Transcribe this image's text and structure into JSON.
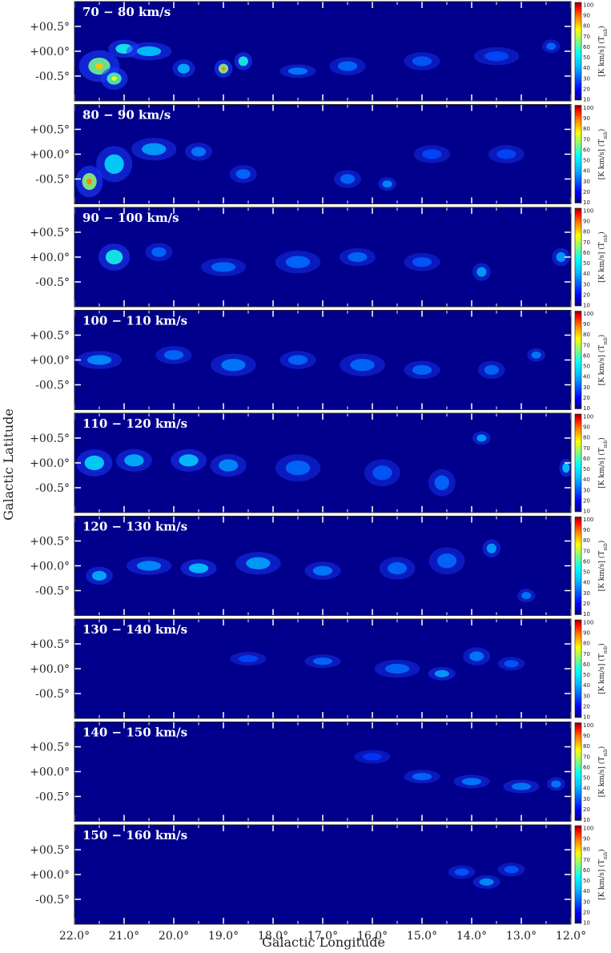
{
  "chart_data": {
    "type": "heatmap",
    "xlabel": "Galactic Longitude",
    "ylabel": "Galactic Latitude",
    "x_ticks": [
      "22.0°",
      "21.0°",
      "20.0°",
      "19.0°",
      "18.0°",
      "17.0°",
      "16.0°",
      "15.0°",
      "14.0°",
      "13.0°",
      "12.0°"
    ],
    "y_ticks": [
      "+00.5°",
      "+00.0°",
      "-00.5°"
    ],
    "colorbar": {
      "unit_label": "[K km/s] (T",
      "unit_subscript": "mb",
      "unit_suffix": ")",
      "ticks": [
        "100",
        "90",
        "80",
        "70",
        "60",
        "50",
        "40",
        "30",
        "20",
        "10"
      ],
      "colors": [
        "#000080",
        "#0000ff",
        "#0080ff",
        "#00ffff",
        "#80ff80",
        "#ffff00",
        "#ff8000",
        "#ff0000",
        "#800000"
      ]
    },
    "xlim": [
      22.0,
      12.0
    ],
    "ylim": [
      -1.0,
      1.0
    ],
    "panels": [
      {
        "label": "70 − 80 km/s",
        "clumps": [
          [
            21.5,
            -0.3,
            0.45,
            0.35,
            0.85
          ],
          [
            21.0,
            0.05,
            0.35,
            0.2,
            0.7
          ],
          [
            21.2,
            -0.55,
            0.3,
            0.25,
            0.8
          ],
          [
            20.5,
            0.0,
            0.5,
            0.2,
            0.55
          ],
          [
            19.8,
            -0.35,
            0.25,
            0.2,
            0.5
          ],
          [
            19.0,
            -0.35,
            0.2,
            0.2,
            0.9
          ],
          [
            18.6,
            -0.2,
            0.2,
            0.2,
            0.7
          ],
          [
            17.5,
            -0.4,
            0.4,
            0.15,
            0.35
          ],
          [
            16.5,
            -0.3,
            0.4,
            0.2,
            0.3
          ],
          [
            15.0,
            -0.2,
            0.4,
            0.2,
            0.25
          ],
          [
            13.5,
            -0.1,
            0.5,
            0.2,
            0.2
          ],
          [
            12.4,
            0.1,
            0.2,
            0.15,
            0.3
          ]
        ]
      },
      {
        "label": "80 − 90 km/s",
        "clumps": [
          [
            21.7,
            -0.55,
            0.3,
            0.35,
            0.9
          ],
          [
            21.2,
            -0.2,
            0.4,
            0.4,
            0.6
          ],
          [
            20.4,
            0.1,
            0.5,
            0.25,
            0.45
          ],
          [
            19.5,
            0.05,
            0.3,
            0.2,
            0.35
          ],
          [
            18.6,
            -0.4,
            0.3,
            0.2,
            0.3
          ],
          [
            16.5,
            -0.5,
            0.3,
            0.2,
            0.3
          ],
          [
            15.7,
            -0.6,
            0.2,
            0.15,
            0.4
          ],
          [
            14.8,
            0.0,
            0.4,
            0.2,
            0.2
          ],
          [
            13.3,
            0.0,
            0.4,
            0.2,
            0.2
          ]
        ]
      },
      {
        "label": "90 − 100 km/s",
        "clumps": [
          [
            21.2,
            0.0,
            0.35,
            0.3,
            0.7
          ],
          [
            20.3,
            0.1,
            0.3,
            0.2,
            0.3
          ],
          [
            19.0,
            -0.2,
            0.5,
            0.2,
            0.3
          ],
          [
            17.5,
            -0.1,
            0.5,
            0.25,
            0.3
          ],
          [
            16.3,
            0.0,
            0.4,
            0.2,
            0.3
          ],
          [
            15.0,
            -0.1,
            0.4,
            0.2,
            0.25
          ],
          [
            13.8,
            -0.3,
            0.2,
            0.2,
            0.45
          ],
          [
            12.2,
            0.0,
            0.2,
            0.2,
            0.45
          ]
        ]
      },
      {
        "label": "100 − 110 km/s",
        "clumps": [
          [
            21.5,
            0.0,
            0.5,
            0.2,
            0.4
          ],
          [
            20.0,
            0.1,
            0.4,
            0.2,
            0.3
          ],
          [
            18.8,
            -0.1,
            0.5,
            0.25,
            0.35
          ],
          [
            17.5,
            0.0,
            0.4,
            0.2,
            0.3
          ],
          [
            16.2,
            -0.1,
            0.5,
            0.25,
            0.3
          ],
          [
            15.0,
            -0.2,
            0.4,
            0.2,
            0.3
          ],
          [
            13.6,
            -0.2,
            0.3,
            0.2,
            0.3
          ],
          [
            12.7,
            0.1,
            0.2,
            0.15,
            0.35
          ]
        ]
      },
      {
        "label": "110 − 120 km/s",
        "clumps": [
          [
            21.6,
            0.0,
            0.4,
            0.3,
            0.6
          ],
          [
            20.8,
            0.05,
            0.4,
            0.25,
            0.5
          ],
          [
            19.7,
            0.05,
            0.4,
            0.25,
            0.55
          ],
          [
            18.9,
            -0.05,
            0.4,
            0.25,
            0.4
          ],
          [
            17.5,
            -0.1,
            0.5,
            0.3,
            0.3
          ],
          [
            15.8,
            -0.2,
            0.4,
            0.3,
            0.25
          ],
          [
            14.6,
            -0.4,
            0.3,
            0.3,
            0.3
          ],
          [
            13.8,
            0.5,
            0.2,
            0.15,
            0.45
          ],
          [
            12.1,
            -0.1,
            0.15,
            0.2,
            0.55
          ]
        ]
      },
      {
        "label": "120 − 130 km/s",
        "clumps": [
          [
            21.5,
            -0.2,
            0.3,
            0.2,
            0.5
          ],
          [
            20.5,
            0.0,
            0.5,
            0.2,
            0.4
          ],
          [
            19.5,
            -0.05,
            0.4,
            0.2,
            0.55
          ],
          [
            18.3,
            0.05,
            0.5,
            0.25,
            0.45
          ],
          [
            17.0,
            -0.1,
            0.4,
            0.2,
            0.35
          ],
          [
            15.5,
            -0.05,
            0.4,
            0.25,
            0.3
          ],
          [
            14.5,
            0.1,
            0.4,
            0.3,
            0.3
          ],
          [
            13.6,
            0.35,
            0.2,
            0.2,
            0.45
          ],
          [
            12.9,
            -0.6,
            0.2,
            0.15,
            0.35
          ]
        ]
      },
      {
        "label": "130 − 140 km/s",
        "clumps": [
          [
            18.5,
            0.2,
            0.4,
            0.15,
            0.2
          ],
          [
            17.0,
            0.15,
            0.4,
            0.15,
            0.3
          ],
          [
            15.5,
            0.0,
            0.5,
            0.2,
            0.3
          ],
          [
            14.6,
            -0.1,
            0.3,
            0.15,
            0.45
          ],
          [
            13.9,
            0.25,
            0.3,
            0.2,
            0.35
          ],
          [
            13.2,
            0.1,
            0.3,
            0.15,
            0.25
          ]
        ]
      },
      {
        "label": "140 − 150 km/s",
        "clumps": [
          [
            16.0,
            0.3,
            0.4,
            0.15,
            0.15
          ],
          [
            15.0,
            -0.1,
            0.4,
            0.15,
            0.3
          ],
          [
            14.0,
            -0.2,
            0.4,
            0.15,
            0.35
          ],
          [
            13.0,
            -0.3,
            0.4,
            0.15,
            0.35
          ],
          [
            12.3,
            -0.25,
            0.2,
            0.15,
            0.35
          ]
        ]
      },
      {
        "label": "150 − 160 km/s",
        "clumps": [
          [
            14.2,
            0.05,
            0.3,
            0.15,
            0.25
          ],
          [
            13.7,
            -0.15,
            0.3,
            0.15,
            0.4
          ],
          [
            13.2,
            0.1,
            0.3,
            0.15,
            0.25
          ]
        ]
      }
    ]
  }
}
